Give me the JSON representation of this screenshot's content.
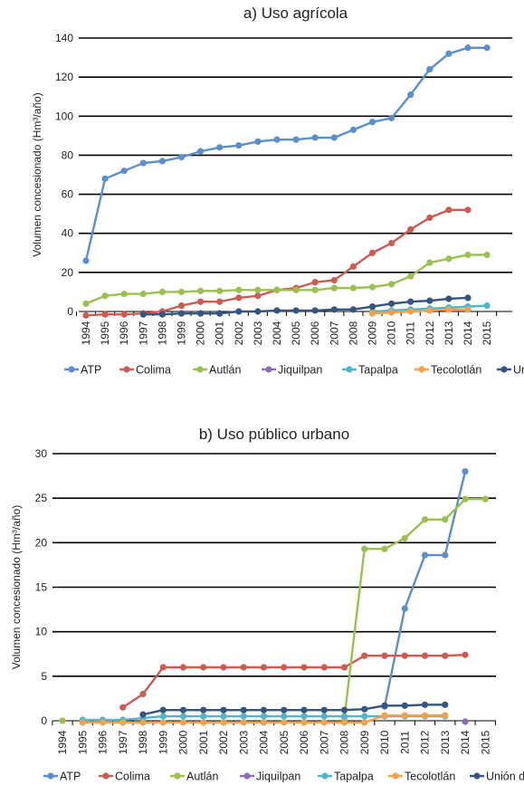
{
  "chart_data": [
    {
      "type": "line",
      "title": "a) Uso agrícola",
      "xlabel": "",
      "ylabel": "Volumen concesionado (Hm³/año)",
      "ylim": [
        0,
        140
      ],
      "yticks": [
        "0",
        "20",
        "40",
        "60",
        "80",
        "100",
        "120",
        "140"
      ],
      "categories": [
        "1994",
        "1995",
        "1996",
        "1997",
        "1998",
        "1999",
        "2000",
        "2001",
        "2002",
        "2003",
        "2004",
        "2005",
        "2006",
        "2007",
        "2008",
        "2009",
        "2010",
        "2011",
        "2012",
        "2013",
        "2014",
        "2015"
      ],
      "grid": true,
      "legend": "bottom",
      "series": [
        {
          "name": "ATP",
          "color": "#5b8fcc",
          "values": [
            26,
            68,
            72,
            76,
            77,
            79,
            82,
            84,
            85,
            87,
            88,
            88,
            89,
            89,
            93,
            97,
            99,
            111,
            124,
            132,
            135,
            135
          ]
        },
        {
          "name": "Colima",
          "color": "#cc5c52",
          "values": [
            -2,
            -1.5,
            -1.5,
            -1,
            0,
            3,
            5,
            5,
            7,
            8,
            11,
            12,
            15,
            16,
            23,
            30,
            35,
            42,
            48,
            52,
            52,
            null
          ]
        },
        {
          "name": "Autlán",
          "color": "#9cc04e",
          "values": [
            4,
            8,
            9,
            9,
            10,
            10,
            10.5,
            10.5,
            11,
            11,
            11,
            11,
            11,
            12,
            12,
            12.5,
            14,
            18,
            25,
            27,
            29,
            29
          ]
        },
        {
          "name": "Jiquilpan",
          "color": "#8b6fb3",
          "values": [
            null,
            null,
            null,
            null,
            null,
            null,
            null,
            null,
            null,
            null,
            null,
            null,
            null,
            null,
            null,
            null,
            null,
            null,
            null,
            null,
            null,
            null
          ]
        },
        {
          "name": "Tapalpa",
          "color": "#4fb6cc",
          "values": [
            null,
            null,
            null,
            null,
            null,
            null,
            null,
            null,
            null,
            null,
            null,
            null,
            null,
            null,
            null,
            0,
            0.5,
            1,
            1.5,
            2,
            2.5,
            3
          ]
        },
        {
          "name": "Tecolotlán",
          "color": "#f5a24a",
          "values": [
            null,
            null,
            null,
            null,
            null,
            null,
            null,
            null,
            null,
            null,
            null,
            null,
            null,
            null,
            null,
            -1,
            -0.5,
            0,
            0.5,
            1,
            1,
            null
          ]
        },
        {
          "name": "Unión de Tula",
          "color": "#34557e",
          "values": [
            null,
            null,
            null,
            -1.5,
            -1.5,
            -1,
            -1,
            -1,
            0,
            0,
            0.5,
            0.5,
            0.5,
            1,
            1,
            2.5,
            4,
            5,
            5.5,
            6.5,
            7,
            null
          ]
        }
      ]
    },
    {
      "type": "line",
      "title": "b) Uso público urbano",
      "xlabel": "",
      "ylabel": "Volumen concesionado (Hm³/año)",
      "ylim": [
        0,
        30
      ],
      "yticks": [
        "0",
        "5",
        "10",
        "15",
        "20",
        "25",
        "30"
      ],
      "categories": [
        "1994",
        "1995",
        "1996",
        "1997",
        "1998",
        "1999",
        "2000",
        "2001",
        "2002",
        "2003",
        "2004",
        "2005",
        "2006",
        "2007",
        "2008",
        "2009",
        "2010",
        "2011",
        "2012",
        "2013",
        "2014",
        "2015"
      ],
      "grid": true,
      "legend": "bottom",
      "series": [
        {
          "name": "ATP",
          "color": "#5b8fcc",
          "values": [
            null,
            null,
            null,
            null,
            null,
            null,
            null,
            null,
            null,
            null,
            null,
            null,
            null,
            null,
            null,
            null,
            1.6,
            12.6,
            18.6,
            18.6,
            28,
            null
          ]
        },
        {
          "name": "Colima",
          "color": "#cc5c52",
          "values": [
            null,
            null,
            null,
            1.5,
            3,
            6,
            6,
            6,
            6,
            6,
            6,
            6,
            6,
            6,
            6,
            7.3,
            7.3,
            7.3,
            7.3,
            7.3,
            7.4,
            null
          ]
        },
        {
          "name": "Autlán",
          "color": "#9cc04e",
          "values": [
            0,
            null,
            null,
            null,
            null,
            null,
            null,
            null,
            null,
            null,
            null,
            null,
            null,
            null,
            0.3,
            19.3,
            19.3,
            20.5,
            22.6,
            22.6,
            24.9,
            24.9
          ]
        },
        {
          "name": "Jiquilpan",
          "color": "#8b6fb3",
          "values": [
            null,
            null,
            null,
            null,
            null,
            null,
            null,
            null,
            null,
            null,
            null,
            null,
            null,
            null,
            null,
            null,
            null,
            null,
            null,
            null,
            -0.1,
            null
          ]
        },
        {
          "name": "Tapalpa",
          "color": "#4fb6cc",
          "values": [
            null,
            0.1,
            0.1,
            0.1,
            0.3,
            0.5,
            0.5,
            0.5,
            0.5,
            0.5,
            0.5,
            0.5,
            0.5,
            0.5,
            0.5,
            0.5,
            0.5,
            0.5,
            0.5,
            0.5,
            null,
            null
          ]
        },
        {
          "name": "Tecolotlán",
          "color": "#f5a24a",
          "values": [
            null,
            -0.2,
            -0.2,
            -0.2,
            -0.2,
            -0.2,
            -0.2,
            -0.2,
            -0.2,
            -0.2,
            -0.2,
            -0.2,
            -0.2,
            -0.2,
            -0.2,
            -0.2,
            0.6,
            0.6,
            0.6,
            0.6,
            null,
            null
          ]
        },
        {
          "name": "Unión de Tula",
          "color": "#34557e",
          "values": [
            null,
            null,
            null,
            null,
            0.7,
            1.2,
            1.2,
            1.2,
            1.2,
            1.2,
            1.2,
            1.2,
            1.2,
            1.2,
            1.2,
            1.3,
            1.7,
            1.7,
            1.8,
            1.8,
            null,
            null
          ]
        }
      ]
    }
  ]
}
